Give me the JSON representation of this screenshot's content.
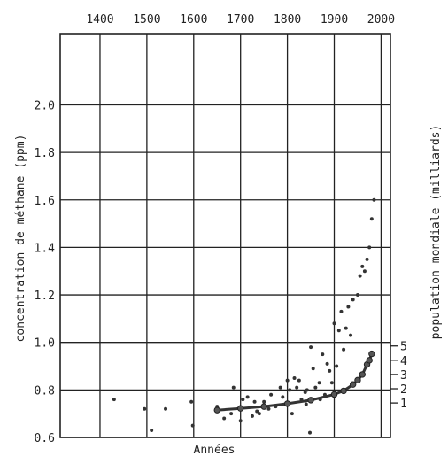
{
  "chart_data": {
    "type": "scatter",
    "xlabel": "Années",
    "ylabel": "concentration de méthane (ppm)",
    "y2label": "population mondiale (milliards)",
    "xlim": [
      1315,
      2020
    ],
    "ylim": [
      0.6,
      2.3
    ],
    "y2lim": [
      0,
      5
    ],
    "x_ticks": [
      "1400",
      "1500",
      "1600",
      "1700",
      "1800",
      "1900",
      "2000"
    ],
    "y_ticks": [
      "0.6",
      "0.8",
      "1.0",
      "1.2",
      "1.4",
      "1.6",
      "1.8",
      "2.0"
    ],
    "y2_ticks": [
      "1",
      "2",
      "3",
      "4",
      "5"
    ],
    "grid": true,
    "series": [
      {
        "type": "scatter",
        "axis": "left",
        "points": [
          [
            1430,
            0.76
          ],
          [
            1495,
            0.72
          ],
          [
            1510,
            0.63
          ],
          [
            1540,
            0.72
          ],
          [
            1595,
            0.75
          ],
          [
            1598,
            0.65
          ],
          [
            1650,
            0.73
          ],
          [
            1665,
            0.68
          ],
          [
            1680,
            0.7
          ],
          [
            1685,
            0.81
          ],
          [
            1700,
            0.67
          ],
          [
            1705,
            0.76
          ],
          [
            1715,
            0.77
          ],
          [
            1725,
            0.69
          ],
          [
            1730,
            0.75
          ],
          [
            1735,
            0.71
          ],
          [
            1740,
            0.7
          ],
          [
            1750,
            0.75
          ],
          [
            1760,
            0.72
          ],
          [
            1765,
            0.78
          ],
          [
            1775,
            0.73
          ],
          [
            1785,
            0.81
          ],
          [
            1790,
            0.77
          ],
          [
            1795,
            0.74
          ],
          [
            1800,
            0.84
          ],
          [
            1805,
            0.8
          ],
          [
            1810,
            0.7
          ],
          [
            1815,
            0.85
          ],
          [
            1820,
            0.81
          ],
          [
            1825,
            0.84
          ],
          [
            1830,
            0.76
          ],
          [
            1838,
            0.79
          ],
          [
            1840,
            0.74
          ],
          [
            1842,
            0.8
          ],
          [
            1848,
            0.62
          ],
          [
            1850,
            0.98
          ],
          [
            1855,
            0.89
          ],
          [
            1860,
            0.81
          ],
          [
            1868,
            0.83
          ],
          [
            1870,
            0.76
          ],
          [
            1875,
            0.95
          ],
          [
            1880,
            0.78
          ],
          [
            1885,
            0.91
          ],
          [
            1890,
            0.88
          ],
          [
            1895,
            0.83
          ],
          [
            1900,
            1.08
          ],
          [
            1905,
            0.9
          ],
          [
            1910,
            1.05
          ],
          [
            1915,
            1.13
          ],
          [
            1920,
            0.97
          ],
          [
            1925,
            1.06
          ],
          [
            1930,
            1.15
          ],
          [
            1935,
            1.03
          ],
          [
            1940,
            1.18
          ],
          [
            1950,
            1.2
          ],
          [
            1955,
            1.28
          ],
          [
            1960,
            1.32
          ],
          [
            1965,
            1.3
          ],
          [
            1970,
            1.35
          ],
          [
            1975,
            1.4
          ],
          [
            1980,
            1.52
          ],
          [
            1985,
            1.6
          ]
        ]
      },
      {
        "type": "line",
        "axis": "right",
        "markers": true,
        "points": [
          [
            1650,
            0.5
          ],
          [
            1700,
            0.62
          ],
          [
            1750,
            0.75
          ],
          [
            1800,
            0.95
          ],
          [
            1850,
            1.2
          ],
          [
            1900,
            1.6
          ],
          [
            1920,
            1.85
          ],
          [
            1940,
            2.3
          ],
          [
            1950,
            2.6
          ],
          [
            1960,
            3.0
          ],
          [
            1970,
            3.7
          ],
          [
            1975,
            4.0
          ],
          [
            1980,
            4.45
          ]
        ]
      }
    ]
  }
}
